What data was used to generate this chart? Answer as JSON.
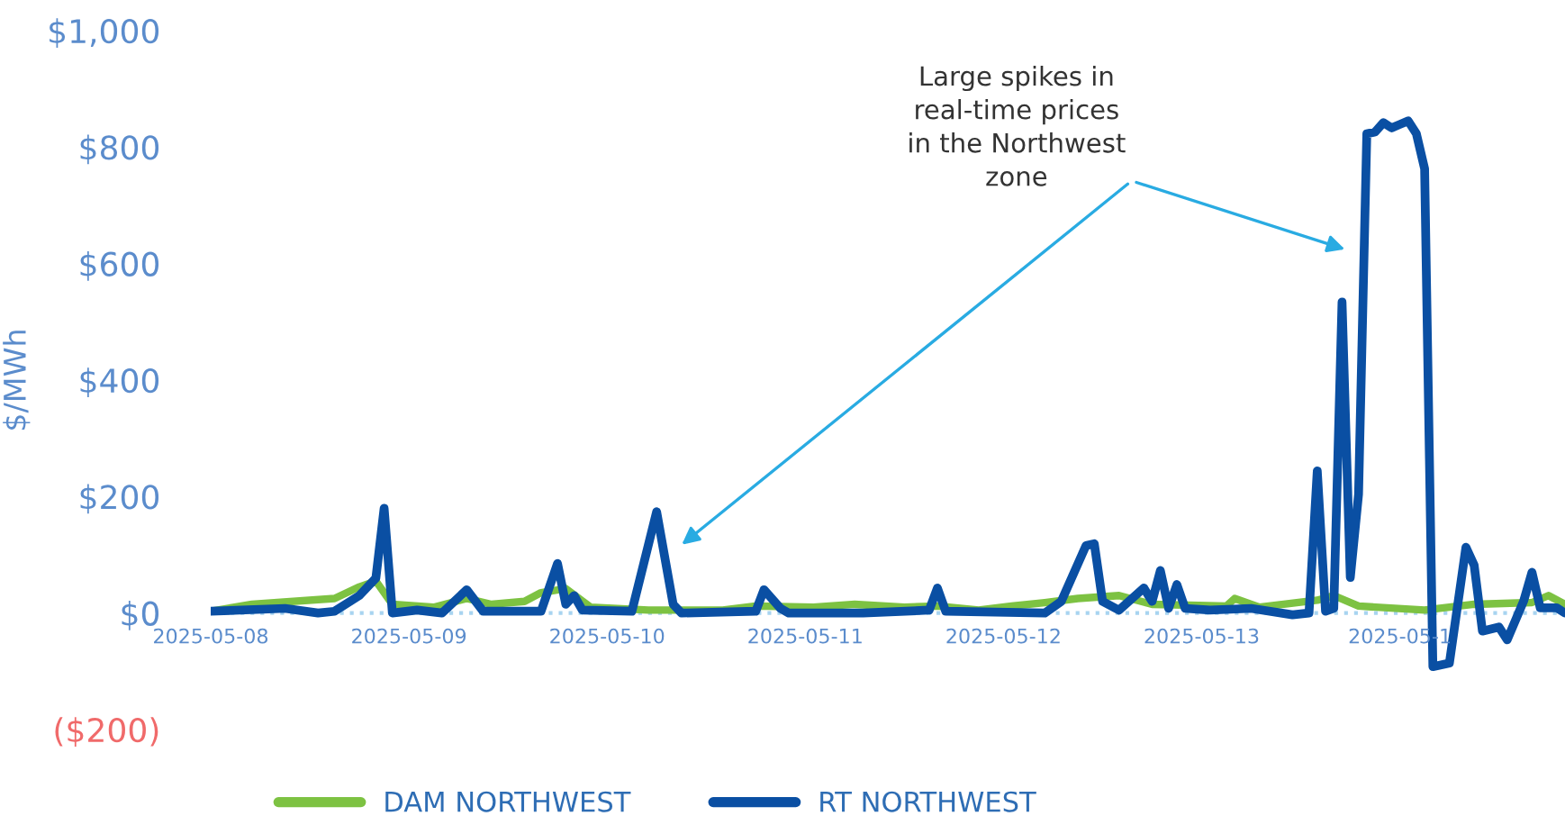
{
  "chart_data": {
    "type": "line",
    "ylabel": "$/MWh",
    "xlim": [
      "2025-05-08",
      "2025-05-14T20:00"
    ],
    "xticks": [
      "2025-05-08",
      "2025-05-09",
      "2025-05-10",
      "2025-05-11",
      "2025-05-12",
      "2025-05-13",
      {
        "value": "2025-05-14",
        "label": "2025-05-1"
      }
    ],
    "ref_lines": [
      {
        "axis": "y",
        "value": 0,
        "color": "#a8d4f0",
        "line_style": "dotted"
      }
    ],
    "ylim": [
      -200,
      1000
    ],
    "yticks": [
      {
        "value": -200,
        "label": "($200)"
      },
      {
        "value": 0,
        "label": "$0"
      },
      {
        "value": 200,
        "label": "$200"
      },
      {
        "value": 400,
        "label": "$400"
      },
      {
        "value": 600,
        "label": "$600"
      },
      {
        "value": 800,
        "label": "$800"
      },
      {
        "value": 1000,
        "label": "$1,000"
      }
    ],
    "grid": false,
    "legend": "bottom",
    "annotations": [
      "Large spikes in\nreal-time prices\nin the Northwest\nzone"
    ],
    "series": [
      {
        "name": "DAM NORTHWEST",
        "color": "#7dc242",
        "x": [
          "2025-05-08T00:00",
          "2025-05-08T05:00",
          "2025-05-08T15:00",
          "2025-05-08T18:00",
          "2025-05-08T20:00",
          "2025-05-08T22:00",
          "2025-05-09T03:00",
          "2025-05-09T07:00",
          "2025-05-09T10:00",
          "2025-05-09T14:00",
          "2025-05-09T16:00",
          "2025-05-09T19:00",
          "2025-05-09T22:00",
          "2025-05-10T05:00",
          "2025-05-10T14:00",
          "2025-05-10T18:00",
          "2025-05-11T01:00",
          "2025-05-11T06:00",
          "2025-05-11T12:00",
          "2025-05-11T16:00",
          "2025-05-11T21:00",
          "2025-05-12T01:00",
          "2025-05-12T05:00",
          "2025-05-12T09:00",
          "2025-05-12T14:00",
          "2025-05-12T18:00",
          "2025-05-13T03:00",
          "2025-05-13T04:00",
          "2025-05-13T07:00",
          "2025-05-13T14:00",
          "2025-05-13T16:00",
          "2025-05-13T19:00",
          "2025-05-14T03:00",
          "2025-05-14T09:00",
          "2025-05-14T16:00",
          "2025-05-14T18:00",
          "2025-05-14T20:00"
        ],
        "values": [
          3,
          15,
          25,
          45,
          55,
          15,
          10,
          25,
          15,
          20,
          35,
          42,
          10,
          5,
          5,
          12,
          10,
          15,
          10,
          12,
          5,
          12,
          18,
          25,
          30,
          15,
          12,
          25,
          10,
          22,
          30,
          12,
          5,
          15,
          18,
          30,
          15
        ]
      },
      {
        "name": "RT NORTHWEST",
        "color": "#0a4fa3",
        "x": [
          "2025-05-08T00:00",
          "2025-05-08T09:00",
          "2025-05-08T13:00",
          "2025-05-08T15:00",
          "2025-05-08T18:00",
          "2025-05-08T20:00",
          "2025-05-08T21:00",
          "2025-05-08T22:00",
          "2025-05-09T01:00",
          "2025-05-09T04:00",
          "2025-05-09T07:00",
          "2025-05-09T09:00",
          "2025-05-09T16:00",
          "2025-05-09T18:00",
          "2025-05-09T19:00",
          "2025-05-09T20:00",
          "2025-05-09T21:00",
          "2025-05-10T03:00",
          "2025-05-10T06:00",
          "2025-05-10T08:00",
          "2025-05-10T09:00",
          "2025-05-10T18:00",
          "2025-05-10T19:00",
          "2025-05-10T21:00",
          "2025-05-10T22:00",
          "2025-05-11T07:00",
          "2025-05-11T15:00",
          "2025-05-11T16:00",
          "2025-05-11T17:00",
          "2025-05-12T05:00",
          "2025-05-12T07:00",
          "2025-05-12T10:00",
          "2025-05-12T11:00",
          "2025-05-12T12:00",
          "2025-05-12T14:00",
          "2025-05-12T17:00",
          "2025-05-12T18:00",
          "2025-05-12T19:00",
          "2025-05-12T20:00",
          "2025-05-12T21:00",
          "2025-05-12T22:00",
          "2025-05-13T01:00",
          "2025-05-13T06:00",
          "2025-05-13T11:00",
          "2025-05-13T13:00",
          "2025-05-13T14:00",
          "2025-05-13T15:00",
          "2025-05-13T16:00",
          "2025-05-13T17:00",
          "2025-05-13T18:00",
          "2025-05-13T19:00",
          "2025-05-13T20:00",
          "2025-05-13T21:00",
          "2025-05-13T22:00",
          "2025-05-13T23:00",
          "2025-05-14T00:00",
          "2025-05-14T01:00",
          "2025-05-14T02:00",
          "2025-05-14T03:00",
          "2025-05-14T04:00",
          "2025-05-14T06:00",
          "2025-05-14T08:00",
          "2025-05-14T09:00",
          "2025-05-14T10:00",
          "2025-05-14T12:00",
          "2025-05-14T13:00",
          "2025-05-14T15:00",
          "2025-05-14T16:00",
          "2025-05-14T17:00",
          "2025-05-14T19:00",
          "2025-05-14T20:00"
        ],
        "values": [
          3,
          8,
          0,
          3,
          30,
          60,
          180,
          0,
          5,
          0,
          40,
          3,
          3,
          85,
          15,
          30,
          5,
          3,
          174,
          15,
          0,
          3,
          40,
          8,
          0,
          0,
          5,
          43,
          3,
          0,
          20,
          116,
          119,
          20,
          5,
          43,
          20,
          73,
          8,
          49,
          8,
          5,
          8,
          -3,
          0,
          244,
          3,
          8,
          534,
          61,
          204,
          823,
          826,
          842,
          833,
          839,
          845,
          823,
          763,
          -92,
          -86,
          113,
          82,
          -31,
          -24,
          -46,
          21,
          70,
          9,
          9,
          0
        ]
      }
    ]
  }
}
